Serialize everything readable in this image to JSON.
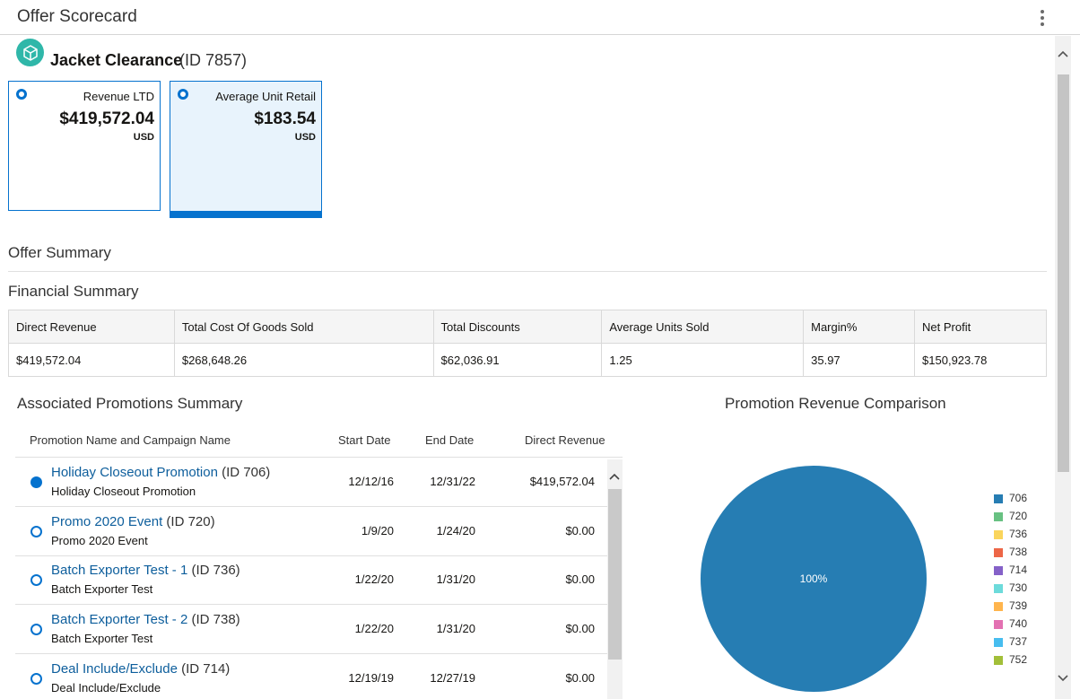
{
  "header": {
    "title": "Offer Scorecard",
    "menu_icon": "kebab-icon"
  },
  "offer": {
    "name": "Jacket Clearance",
    "id_label": "(ID 7857)",
    "icon": "cube-icon"
  },
  "metric_tiles": [
    {
      "label": "Revenue LTD",
      "value": "$419,572.04",
      "currency": "USD",
      "selected": false
    },
    {
      "label": "Average Unit Retail",
      "value": "$183.54",
      "currency": "USD",
      "selected": true
    }
  ],
  "sections": {
    "offer_summary": "Offer Summary",
    "financial_summary": "Financial Summary"
  },
  "financial": {
    "headers": [
      "Direct Revenue",
      "Total Cost Of Goods Sold",
      "Total Discounts",
      "Average Units Sold",
      "Margin%",
      "Net Profit"
    ],
    "values": [
      "$419,572.04",
      "$268,648.26",
      "$62,036.91",
      "1.25",
      "35.97",
      "$150,923.78"
    ]
  },
  "promotions": {
    "title": "Associated Promotions Summary",
    "columns": {
      "name": "Promotion Name and Campaign Name",
      "start": "Start Date",
      "end": "End Date",
      "revenue": "Direct Revenue"
    },
    "rows": [
      {
        "name": "Holiday Closeout Promotion",
        "id": "(ID 706)",
        "campaign": "Holiday Closeout Promotion",
        "start": "12/12/16",
        "end": "12/31/22",
        "revenue": "$419,572.04",
        "selected": true
      },
      {
        "name": "Promo 2020 Event",
        "id": "(ID 720)",
        "campaign": "Promo 2020 Event",
        "start": "1/9/20",
        "end": "1/24/20",
        "revenue": "$0.00",
        "selected": false
      },
      {
        "name": "Batch Exporter Test - 1",
        "id": "(ID 736)",
        "campaign": "Batch Exporter Test",
        "start": "1/22/20",
        "end": "1/31/20",
        "revenue": "$0.00",
        "selected": false
      },
      {
        "name": "Batch Exporter Test - 2",
        "id": "(ID 738)",
        "campaign": "Batch Exporter Test",
        "start": "1/22/20",
        "end": "1/31/20",
        "revenue": "$0.00",
        "selected": false
      },
      {
        "name": "Deal Include/Exclude",
        "id": "(ID 714)",
        "campaign": "Deal Include/Exclude",
        "start": "12/19/19",
        "end": "12/27/19",
        "revenue": "$0.00",
        "selected": false
      }
    ]
  },
  "chart_data": {
    "type": "pie",
    "title": "Promotion Revenue Comparison",
    "slices": [
      {
        "label": "706",
        "value": 100,
        "color": "#267db3"
      },
      {
        "label": "720",
        "value": 0,
        "color": "#68c182"
      },
      {
        "label": "736",
        "value": 0,
        "color": "#fad55c"
      },
      {
        "label": "738",
        "value": 0,
        "color": "#ed6647"
      },
      {
        "label": "714",
        "value": 0,
        "color": "#8561c8"
      },
      {
        "label": "730",
        "value": 0,
        "color": "#6ddbdb"
      },
      {
        "label": "739",
        "value": 0,
        "color": "#ffb54d"
      },
      {
        "label": "740",
        "value": 0,
        "color": "#e371b2"
      },
      {
        "label": "737",
        "value": 0,
        "color": "#47bdef"
      },
      {
        "label": "752",
        "value": 0,
        "color": "#a2bf39"
      }
    ],
    "data_label": "100%",
    "legend_position": "right"
  }
}
